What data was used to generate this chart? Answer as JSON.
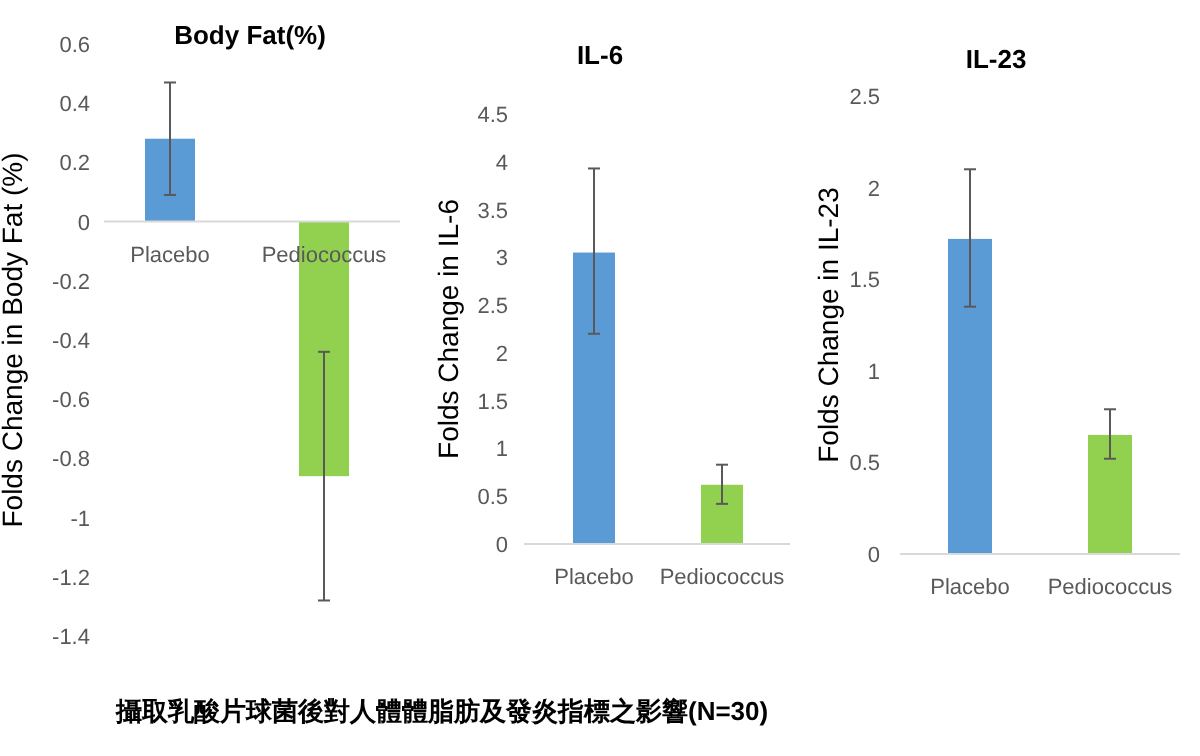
{
  "chart_data": [
    {
      "type": "bar",
      "title": "Body Fat(%)",
      "ylabel": "Folds Change in Body Fat (%)",
      "categories": [
        "Placebo",
        "Pediococcus"
      ],
      "values": [
        0.28,
        -0.86
      ],
      "colors": [
        "#5b9bd5",
        "#92d050"
      ],
      "errors": [
        [
          0.09,
          0.47
        ],
        [
          -1.28,
          -0.44
        ]
      ],
      "ylim": [
        -1.4,
        0.6
      ],
      "yticks": [
        -1.4,
        -1.2,
        -1,
        -0.8,
        -0.6,
        -0.4,
        -0.2,
        0,
        0.2,
        0.4,
        0.6
      ],
      "annotations": [
        "攝取乳酸片球菌後對人體體脂肪及發炎指標之影響(N=30)"
      ]
    },
    {
      "type": "bar",
      "title": "IL-6",
      "ylabel": "Folds Change in IL-6",
      "categories": [
        "Placebo",
        "Pediococcus"
      ],
      "values": [
        3.05,
        0.62
      ],
      "colors": [
        "#5b9bd5",
        "#92d050"
      ],
      "errors": [
        [
          2.2,
          3.93
        ],
        [
          0.42,
          0.83
        ]
      ],
      "ylim": [
        0,
        4.5
      ],
      "yticks": [
        0,
        0.5,
        1,
        1.5,
        2,
        2.5,
        3,
        3.5,
        4,
        4.5
      ]
    },
    {
      "type": "bar",
      "title": "IL-23",
      "ylabel": "Folds Change in IL-23",
      "categories": [
        "Placebo",
        "Pediococcus"
      ],
      "values": [
        1.72,
        0.65
      ],
      "colors": [
        "#5b9bd5",
        "#92d050"
      ],
      "errors": [
        [
          1.35,
          2.1
        ],
        [
          0.52,
          0.79
        ]
      ],
      "ylim": [
        0,
        2.5
      ],
      "yticks": [
        0,
        0.5,
        1,
        1.5,
        2,
        2.5
      ]
    }
  ]
}
